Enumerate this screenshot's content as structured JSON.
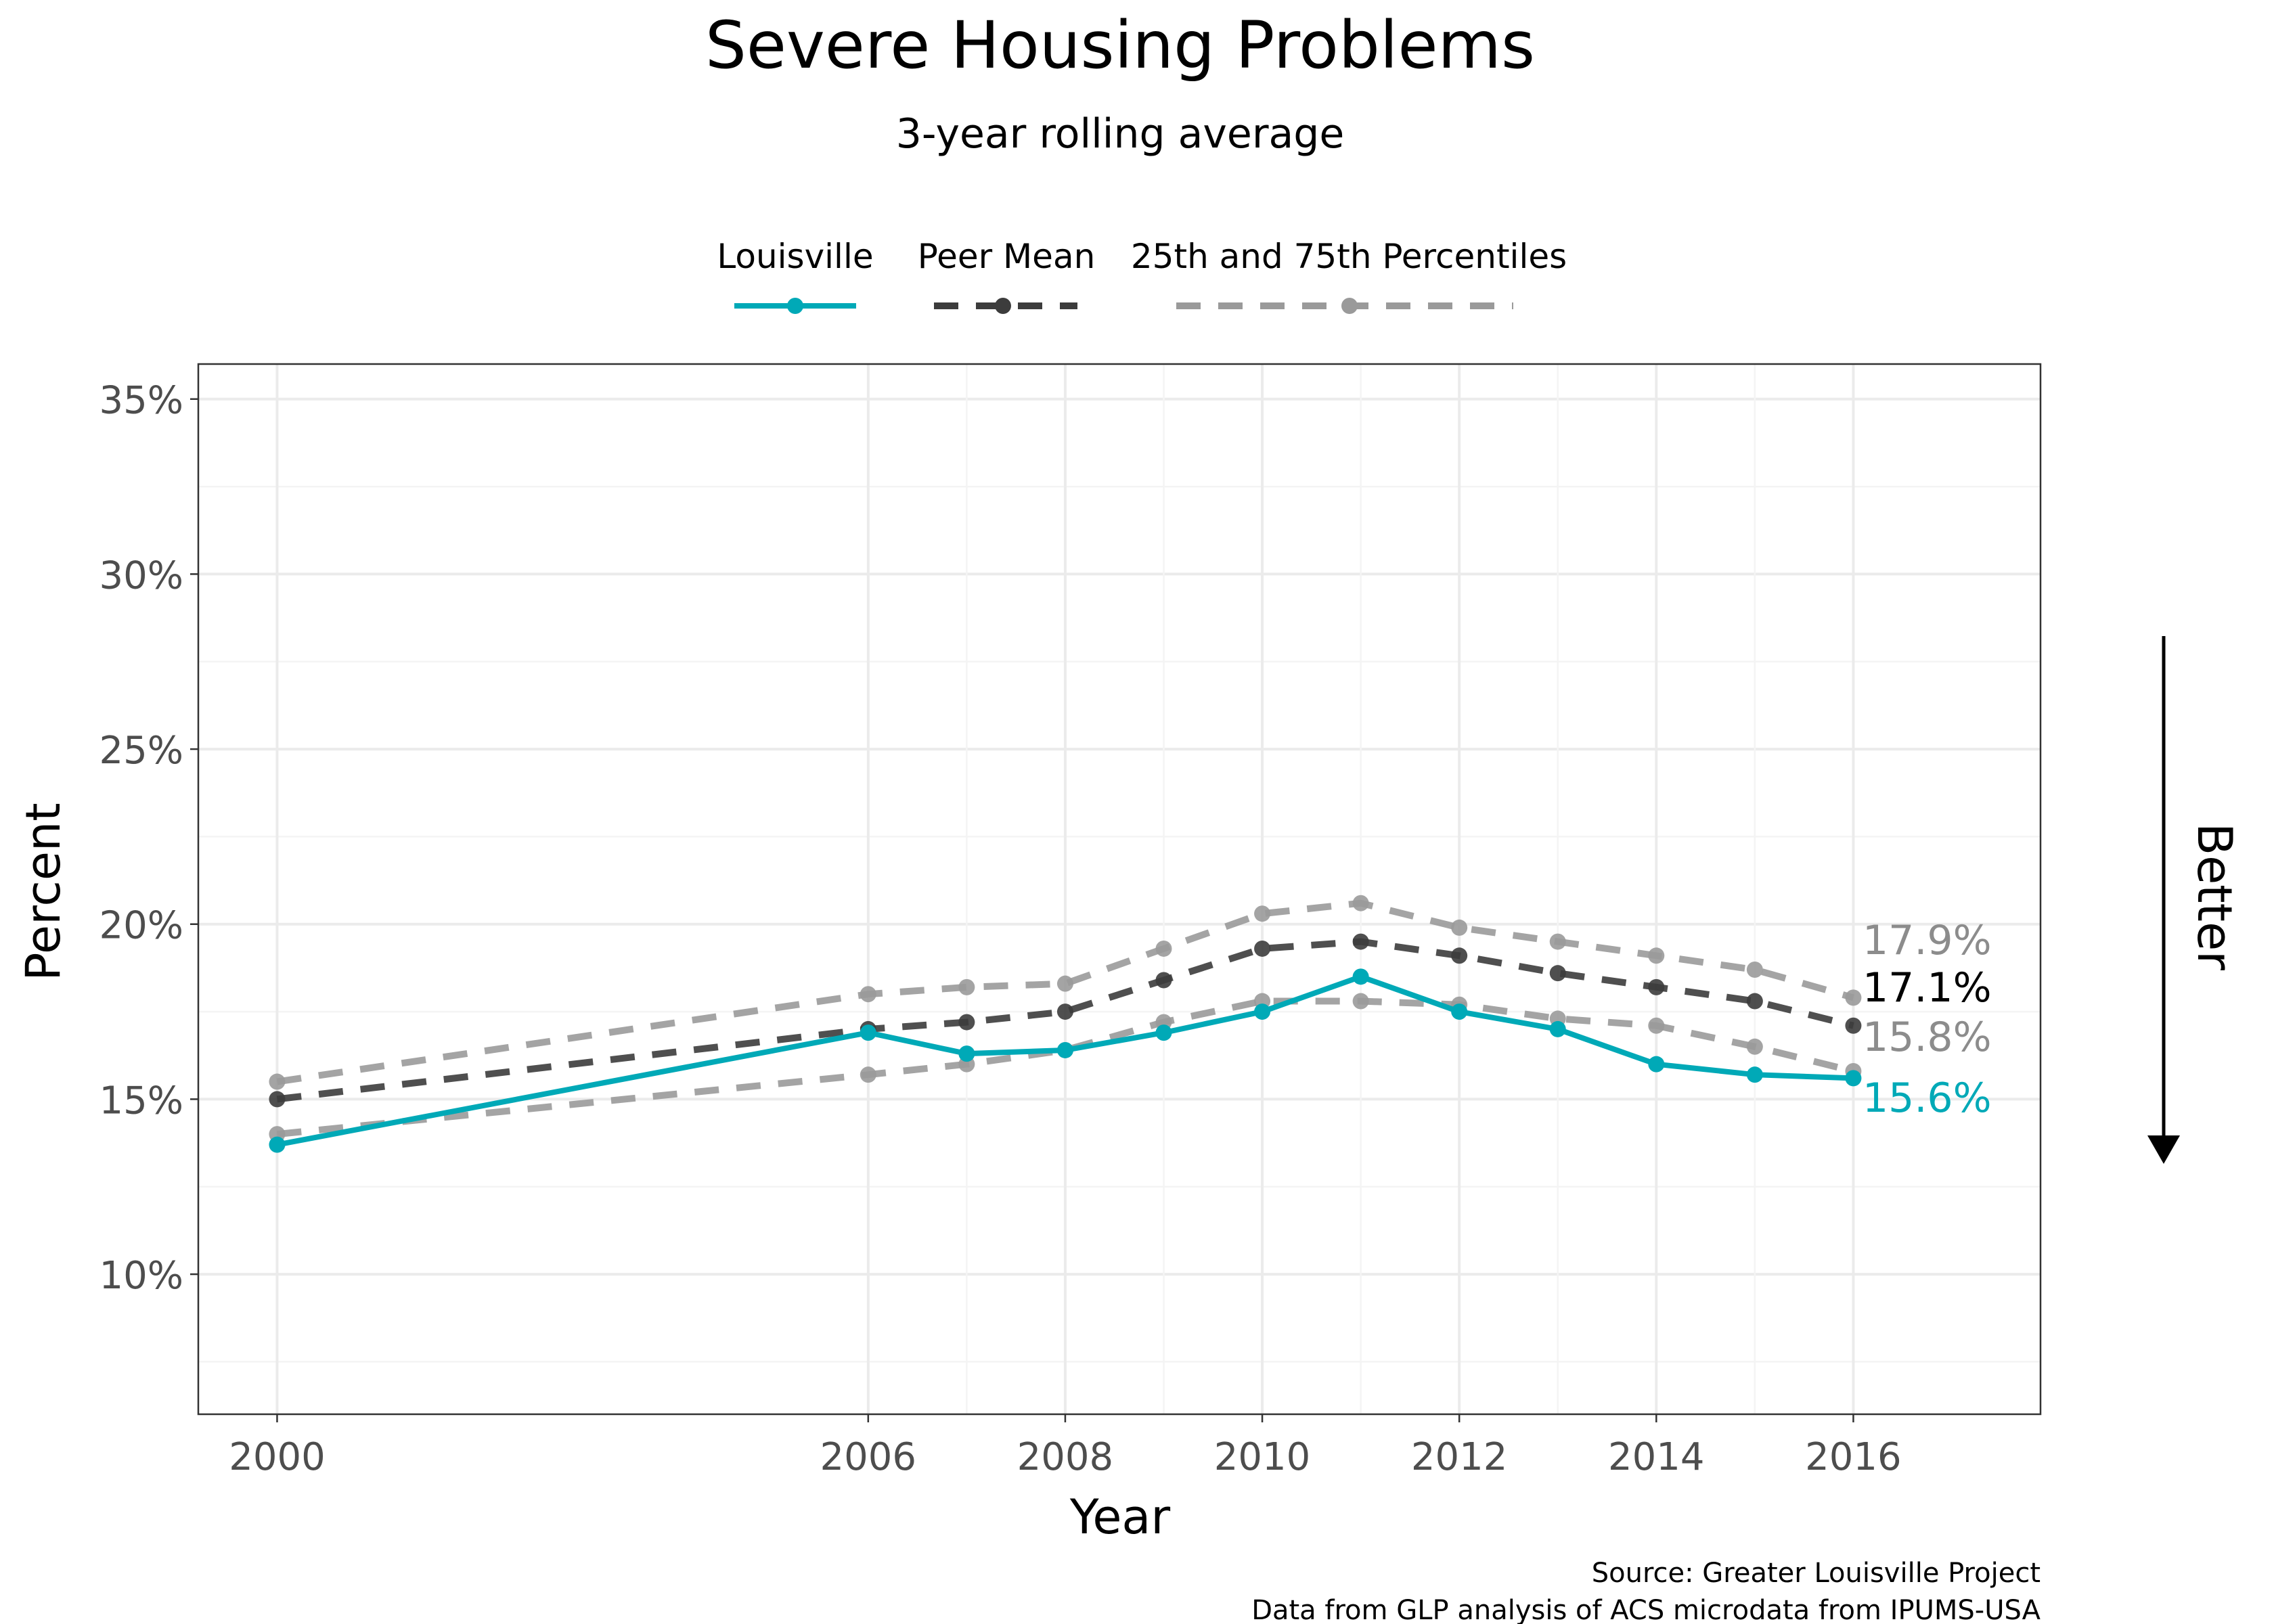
{
  "chart_data": {
    "type": "line",
    "title": "Severe Housing Problems",
    "subtitle": "3-year rolling average",
    "xlabel": "Year",
    "ylabel": "Percent",
    "xlim": [
      1999.2,
      2017.9
    ],
    "ylim": [
      6,
      36
    ],
    "x_ticks": [
      2000,
      2006,
      2008,
      2010,
      2012,
      2014,
      2016
    ],
    "x_tick_labels": [
      "2000",
      "2006",
      "2008",
      "2010",
      "2012",
      "2014",
      "2016"
    ],
    "y_ticks": [
      10,
      15,
      20,
      25,
      30,
      35
    ],
    "y_tick_labels": [
      "10%",
      "15%",
      "20%",
      "25%",
      "30%",
      "35%"
    ],
    "x": [
      2000,
      2006,
      2007,
      2008,
      2009,
      2010,
      2011,
      2012,
      2013,
      2014,
      2015,
      2016
    ],
    "grid": true,
    "legend_position": "top",
    "legend": [
      {
        "label": "Louisville",
        "color": "#00a9b7",
        "style": "solid"
      },
      {
        "label": "Peer Mean",
        "color": "#3c3c3c",
        "style": "dashed"
      },
      {
        "label": "25th and 75th Percentiles",
        "color": "#9a9a9a",
        "style": "dashed"
      }
    ],
    "series": [
      {
        "key": "p75",
        "values": [
          15.5,
          18.0,
          18.2,
          18.3,
          19.3,
          20.3,
          20.6,
          19.9,
          19.5,
          19.1,
          18.7,
          17.9
        ],
        "color": "#9a9a9a",
        "style": "dashed",
        "end_label": "17.9%"
      },
      {
        "key": "p25",
        "values": [
          14.0,
          15.7,
          16.0,
          16.4,
          17.2,
          17.8,
          17.8,
          17.7,
          17.3,
          17.1,
          16.5,
          15.8
        ],
        "color": "#9a9a9a",
        "style": "dashed",
        "end_label": "15.8%"
      },
      {
        "key": "peer",
        "name": "Peer Mean",
        "values": [
          15.0,
          17.0,
          17.2,
          17.5,
          18.4,
          19.3,
          19.5,
          19.1,
          18.6,
          18.2,
          17.8,
          17.1
        ],
        "color": "#3c3c3c",
        "style": "dashed",
        "end_label": "17.1%"
      },
      {
        "key": "louisville",
        "name": "Louisville",
        "values": [
          13.7,
          16.9,
          16.3,
          16.4,
          16.9,
          17.5,
          18.5,
          17.5,
          17.0,
          16.0,
          15.7,
          15.6
        ],
        "color": "#00a9b7",
        "style": "solid",
        "end_label": "15.6%"
      }
    ],
    "side_annotation": "Better",
    "caption_lines": [
      "Source: Greater Louisville Project",
      "Data from GLP analysis of ACS microdata from IPUMS-USA"
    ]
  }
}
